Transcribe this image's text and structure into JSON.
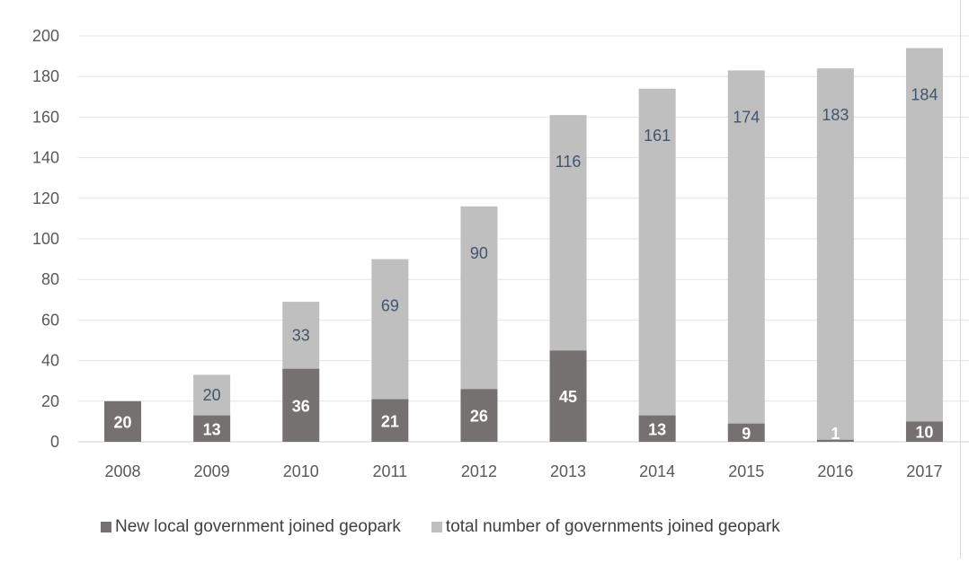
{
  "chart_data": {
    "type": "bar",
    "stacked": true,
    "categories": [
      "2008",
      "2009",
      "2010",
      "2011",
      "2012",
      "2013",
      "2014",
      "2015",
      "2016",
      "2017"
    ],
    "series": [
      {
        "name": "New local government joined geopark",
        "color": "#767171",
        "label_color": "#ffffff",
        "values": [
          20,
          13,
          36,
          21,
          26,
          45,
          13,
          9,
          1,
          10
        ]
      },
      {
        "name": "total number of governments joined geopark",
        "color": "#bfbfbf",
        "label_color": "#44546a",
        "values": [
          null,
          20,
          33,
          69,
          90,
          116,
          161,
          174,
          183,
          184
        ]
      }
    ],
    "ylim": [
      0,
      200
    ],
    "yticks": [
      0,
      20,
      40,
      60,
      80,
      100,
      120,
      140,
      160,
      180,
      200
    ],
    "grid": true,
    "legend_position": "bottom",
    "title": "",
    "xlabel": "",
    "ylabel": ""
  }
}
